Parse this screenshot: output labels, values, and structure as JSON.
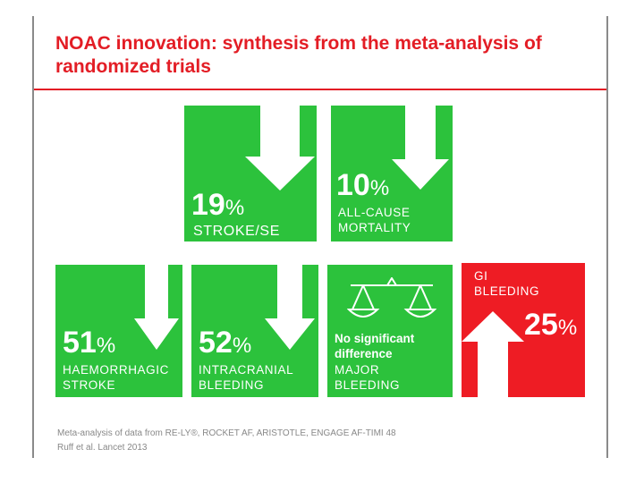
{
  "title": "NOAC innovation: synthesis from the meta-analysis of randomized trials",
  "percent_sign": "%",
  "tiles": [
    {
      "value": "19",
      "label": "STROKE/SE",
      "direction": "down",
      "color": "#2cc23c"
    },
    {
      "value": "10",
      "label": "ALL-CAUSE\nMORTALITY",
      "direction": "down",
      "color": "#2cc23c"
    },
    {
      "value": "51",
      "label": "HAEMORRHAGIC\nSTROKE",
      "direction": "down",
      "color": "#2cc23c"
    },
    {
      "value": "52",
      "label": "INTRACRANIAL\nBLEEDING",
      "direction": "down",
      "color": "#2cc23c"
    },
    {
      "value": "",
      "note": "No significant\ndifference",
      "label": "MAJOR\nBLEEDING",
      "icon": "balance-scale-icon",
      "color": "#2cc23c"
    },
    {
      "value": "25",
      "label": "GI\nBLEEDING",
      "direction": "up",
      "color": "#ee1c24"
    }
  ],
  "footnote": {
    "line1": "Meta-analysis of data from RE-LY®, ROCKET AF, ARISTOTLE, ENGAGE AF-TIMI 48",
    "line2": "Ruff et al. Lancet 2013"
  },
  "colors": {
    "accent": "#e31d25",
    "green": "#2cc23c",
    "red": "#ee1c24"
  }
}
